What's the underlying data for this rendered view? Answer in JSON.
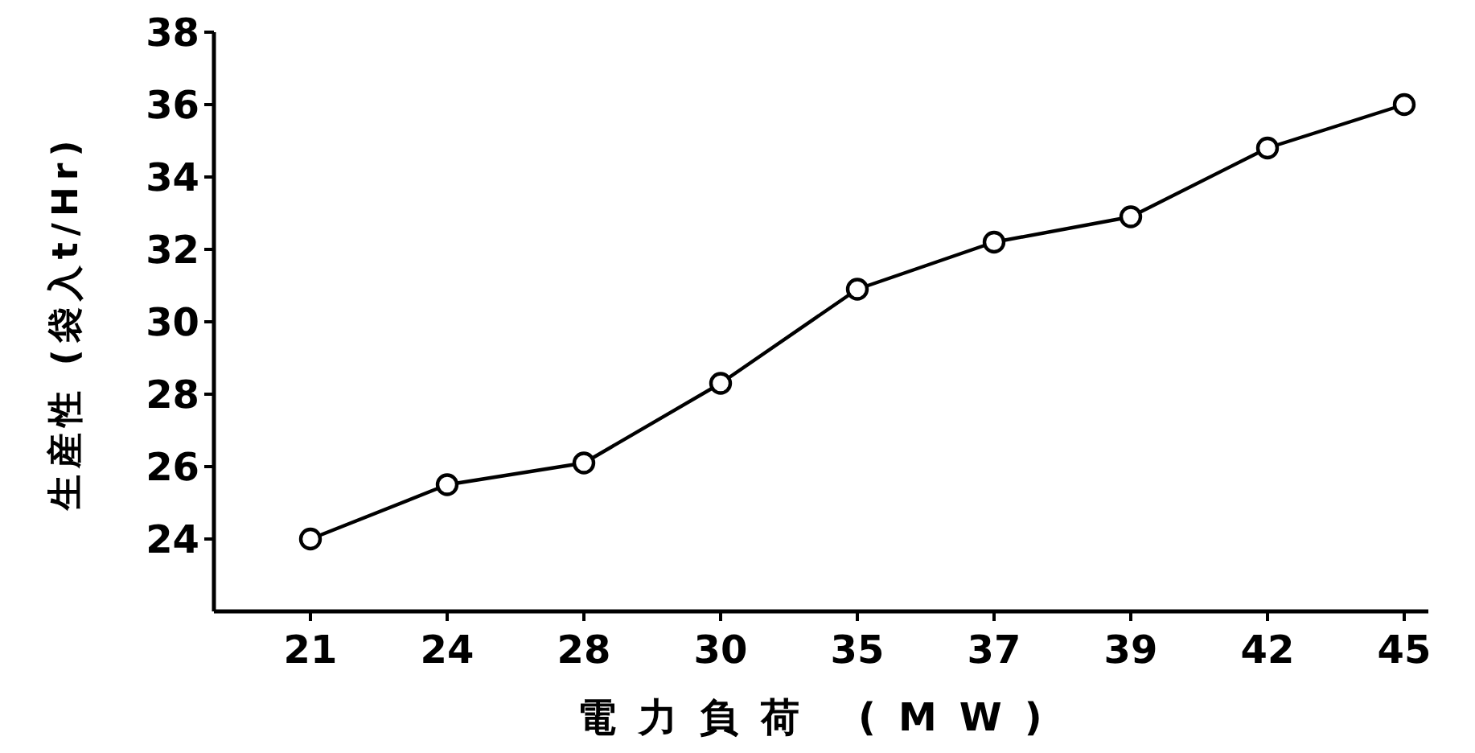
{
  "chart_data": {
    "type": "line",
    "xlabel": "電力負荷 (MW)",
    "ylabel": "生産性 (袋入t/Hr)",
    "categories": [
      "21",
      "24",
      "28",
      "30",
      "35",
      "37",
      "39",
      "42",
      "45"
    ],
    "series": [
      {
        "color": "#000000",
        "values": [
          24.0,
          25.5,
          26.1,
          28.3,
          30.9,
          32.2,
          32.9,
          34.8,
          36.0
        ]
      }
    ],
    "ylim": [
      22,
      38
    ],
    "yticks": [
      24,
      26,
      28,
      30,
      32,
      34,
      36,
      38
    ],
    "marker": "circle",
    "line_style": "solid",
    "grid": false
  }
}
